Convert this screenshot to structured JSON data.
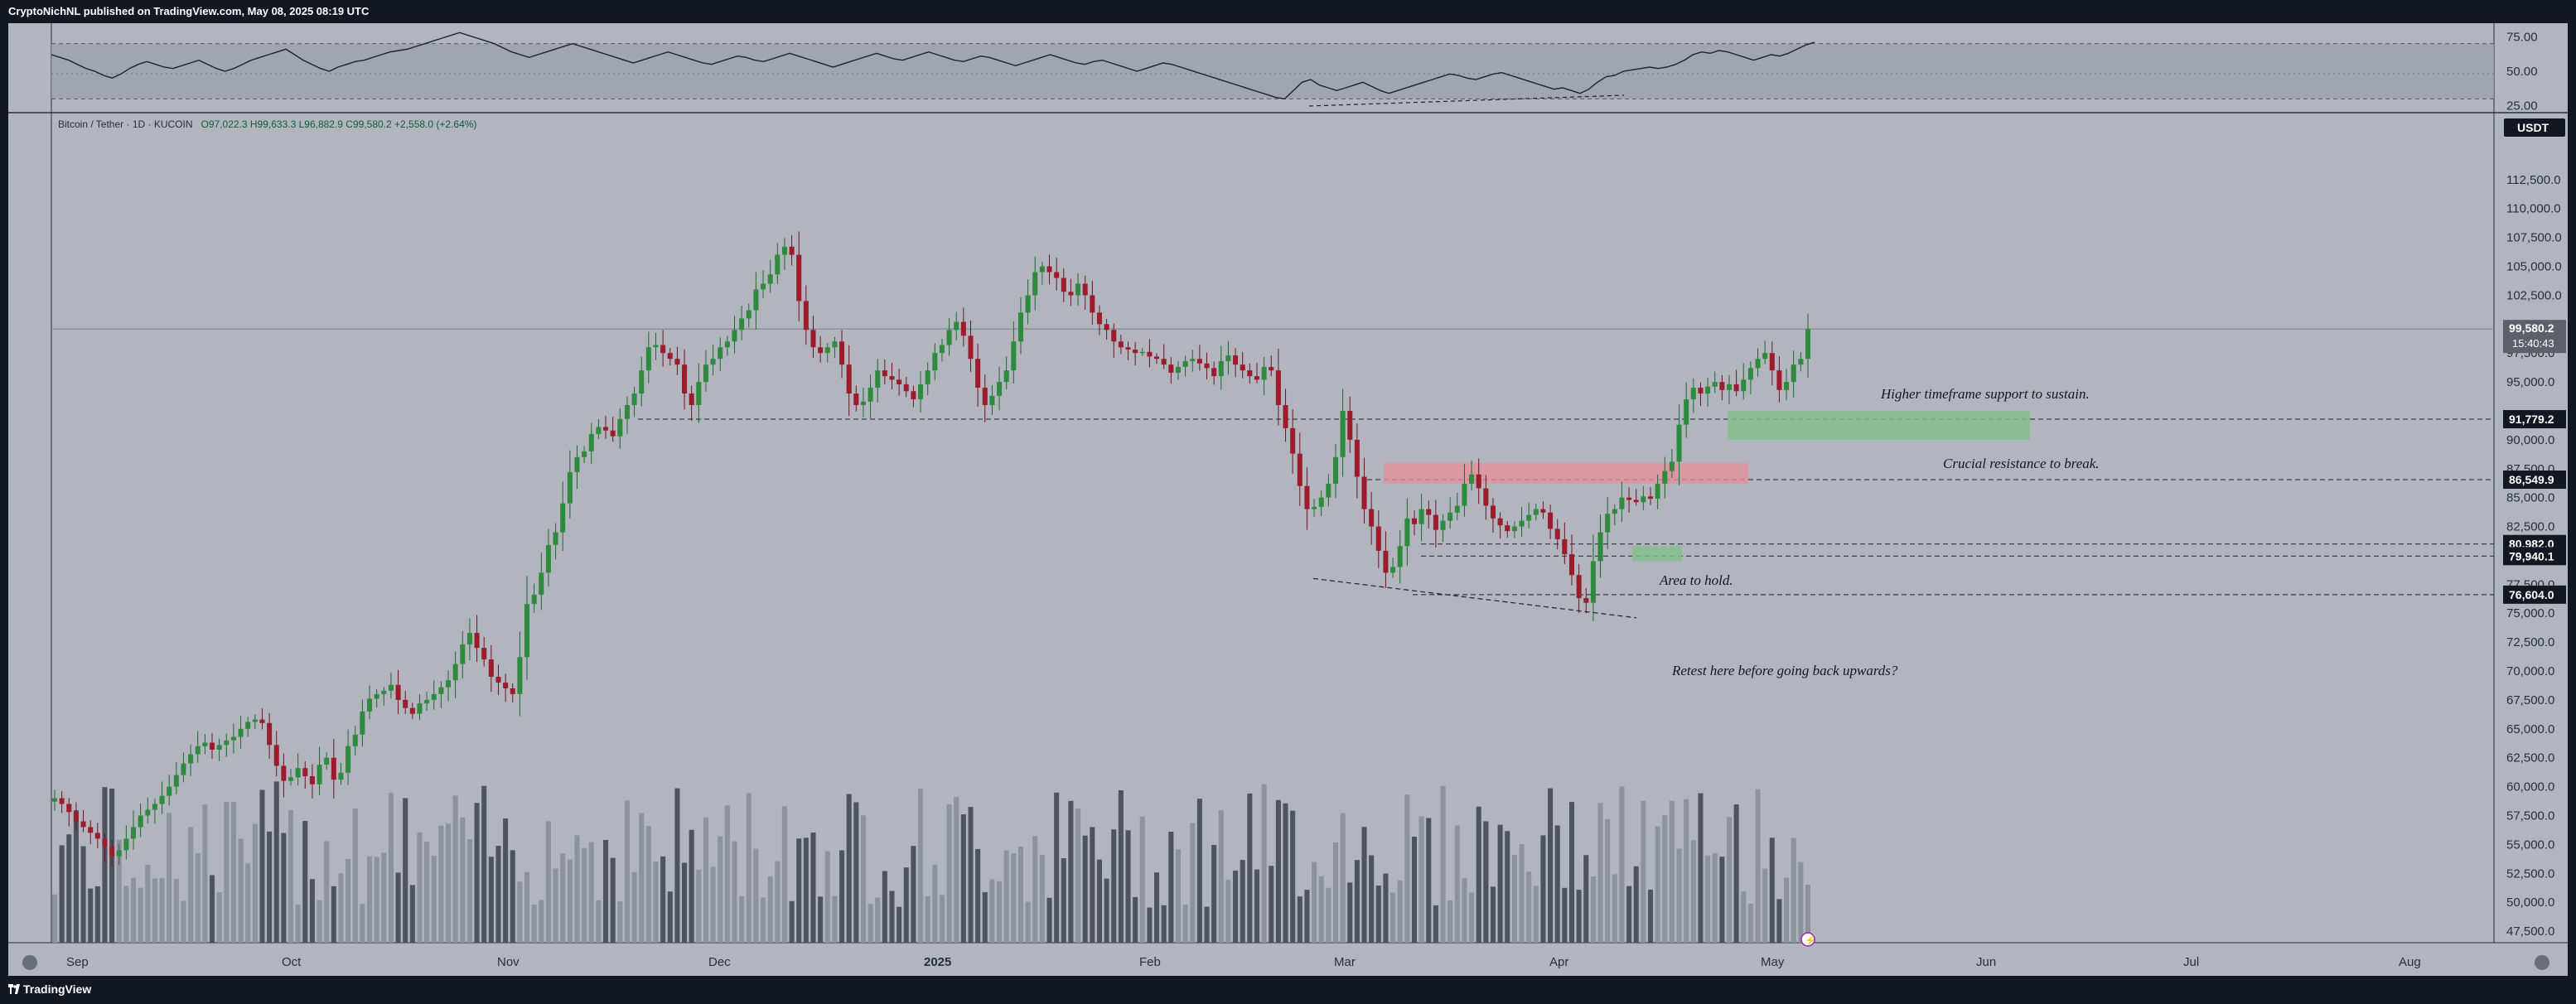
{
  "header": {
    "publisher_line": "CryptoNichNL published on TradingView.com, May 08, 2025 08:19 UTC"
  },
  "footer": {
    "brand": "TradingView"
  },
  "legend": {
    "symbol": "Bitcoin / Tether · 1D · KUCOIN",
    "ohlc": "O97,022.3  H99,633.3  L96,882.9  C99,580.2  +2,558.0 (+2.64%)"
  },
  "currency_badge": "USDT",
  "colors": {
    "bull": "#089981",
    "bear": "#9c1c2c",
    "resistance_zone": "#e58f9b",
    "support_zone": "#7fbf8a",
    "panel": "#b2b5be"
  },
  "chart_data": [
    {
      "type": "line",
      "name": "rsi-pane",
      "y_ticks": [
        "75.00",
        "50.00",
        "25.00"
      ],
      "ylim": [
        20,
        80
      ],
      "band": [
        30,
        70
      ],
      "values": [
        62,
        60,
        58,
        55,
        52,
        50,
        47,
        45,
        48,
        52,
        55,
        57,
        55,
        53,
        52,
        54,
        56,
        58,
        55,
        52,
        50,
        52,
        55,
        58,
        60,
        62,
        64,
        66,
        62,
        58,
        55,
        52,
        50,
        53,
        55,
        57,
        58,
        60,
        62,
        64,
        65,
        66,
        68,
        70,
        72,
        74,
        76,
        78,
        76,
        74,
        72,
        70,
        67,
        64,
        62,
        60,
        62,
        64,
        66,
        68,
        70,
        68,
        66,
        64,
        62,
        60,
        58,
        56,
        58,
        60,
        62,
        64,
        62,
        60,
        58,
        56,
        55,
        57,
        59,
        61,
        60,
        58,
        57,
        59,
        61,
        63,
        61,
        59,
        57,
        55,
        53,
        55,
        57,
        59,
        61,
        63,
        61,
        59,
        58,
        60,
        62,
        64,
        62,
        60,
        58,
        57,
        59,
        61,
        60,
        58,
        56,
        54,
        56,
        58,
        60,
        62,
        60,
        58,
        56,
        55,
        57,
        58,
        56,
        54,
        52,
        50,
        52,
        54,
        56,
        55,
        53,
        51,
        49,
        47,
        45,
        43,
        41,
        39,
        37,
        35,
        33,
        31,
        30,
        36,
        42,
        44,
        40,
        38,
        36,
        38,
        40,
        42,
        39,
        36,
        34,
        36,
        38,
        40,
        42,
        44,
        46,
        48,
        47,
        45,
        44,
        46,
        48,
        49,
        47,
        45,
        43,
        41,
        39,
        37,
        38,
        36,
        34,
        37,
        42,
        46,
        47,
        50,
        51,
        52,
        53,
        52,
        53,
        55,
        58,
        62,
        64,
        63,
        65,
        64,
        62,
        60,
        58,
        60,
        62,
        61,
        63,
        66,
        69,
        71
      ]
    },
    {
      "type": "candlestick",
      "name": "BTCUSDT-1D",
      "x_ticks": [
        "Sep",
        "Oct",
        "Nov",
        "Dec",
        "2025",
        "Feb",
        "Mar",
        "Apr",
        "May",
        "Jun",
        "Jul",
        "Aug"
      ],
      "y_ticks": [
        "112,500.0",
        "110,000.0",
        "107,500.0",
        "105,000.0",
        "102,500.0",
        "97,500.0",
        "95,000.0",
        "90,000.0",
        "87,500.0",
        "85,000.0",
        "82,500.0",
        "77,500.0",
        "75,000.0",
        "72,500.0",
        "70,000.0",
        "67,500.0",
        "65,000.0",
        "62,500.0",
        "60,000.0",
        "57,500.0",
        "55,000.0",
        "52,500.0",
        "50,000.0",
        "47,500.0"
      ],
      "ylim": [
        46500,
        116000
      ],
      "close_path": [
        59000,
        58500,
        57800,
        57000,
        56500,
        56000,
        55500,
        54800,
        54000,
        54500,
        55500,
        56500,
        57500,
        58000,
        58500,
        59200,
        60000,
        61000,
        62000,
        62800,
        63500,
        63800,
        63200,
        63600,
        64000,
        64300,
        65000,
        65600,
        65800,
        65500,
        63600,
        61800,
        60500,
        60800,
        61600,
        60900,
        60200,
        61900,
        62500,
        60600,
        61200,
        63500,
        64500,
        66500,
        67600,
        68000,
        68300,
        68800,
        67500,
        66800,
        66300,
        67200,
        67500,
        68000,
        68600,
        69200,
        70600,
        72300,
        73300,
        72000,
        71000,
        69500,
        69000,
        68500,
        68000,
        71200,
        75800,
        76600,
        78500,
        80900,
        82000,
        84500,
        87200,
        88500,
        89000,
        90500,
        91100,
        90800,
        90300,
        91800,
        93000,
        94000,
        96000,
        98000,
        98200,
        97500,
        97000,
        96500,
        94000,
        93000,
        95000,
        96500,
        97000,
        98000,
        98500,
        99500,
        100500,
        101200,
        103000,
        103500,
        104300,
        106000,
        106700,
        106000,
        102000,
        99500,
        98000,
        97500,
        98000,
        98500,
        96500,
        94000,
        93000,
        93300,
        94500,
        96000,
        95500,
        95200,
        94800,
        94200,
        93500,
        94800,
        96000,
        97500,
        98200,
        99500,
        100200,
        99000,
        97000,
        94500,
        93000,
        93800,
        95000,
        96000,
        98500,
        101000,
        102500,
        104500,
        105000,
        104500,
        104000,
        102800,
        102500,
        103500,
        102500,
        101000,
        100000,
        99500,
        98500,
        98000,
        97800,
        97500,
        97600,
        97200,
        97000,
        96500,
        95800,
        96300,
        96800,
        97000,
        96600,
        96200,
        95500,
        96800,
        97300,
        96500,
        96000,
        95500,
        95200,
        96300,
        96000,
        93000,
        91000,
        88800,
        86000,
        84000,
        84200,
        85000,
        86200,
        88500,
        92500,
        90000,
        86800,
        84000,
        82500,
        80400,
        78500,
        79000,
        80800,
        83200,
        82700,
        84000,
        83500,
        82200,
        83000,
        83700,
        84300,
        86200,
        87000,
        85800,
        84300,
        83200,
        82600,
        82100,
        82500,
        83000,
        83500,
        84000,
        83700,
        82300,
        81400,
        80100,
        78300,
        76300,
        75900,
        79500,
        82000,
        83600,
        84000,
        85000,
        84800,
        84600,
        85100,
        84900,
        86200,
        87300,
        88100,
        91300,
        93500,
        94500,
        94000,
        94600,
        95000,
        94300,
        94800,
        94200,
        95200,
        96200,
        97000,
        97500,
        96000,
        94300,
        95000,
        96500,
        97000,
        99580
      ]
    },
    {
      "type": "bar",
      "name": "volume-pane"
    }
  ],
  "price_tags": {
    "last": {
      "value": 99580.2,
      "label": "99,580.2",
      "countdown": "15:40:43"
    },
    "levels": [
      {
        "value": 91779.2,
        "label": "91,779.2"
      },
      {
        "value": 86549.9,
        "label": "86,549.9"
      },
      {
        "value": 80982.0,
        "label": "80,982.0"
      },
      {
        "value": 79940.1,
        "label": "79,940.1"
      },
      {
        "value": 76604.0,
        "label": "76,604.0"
      }
    ]
  },
  "annotations": {
    "support": "Higher timeframe support to sustain.",
    "resistance": "Crucial resistance to break.",
    "hold": "Area to hold.",
    "retest": "Retest here before going back upwards?"
  }
}
